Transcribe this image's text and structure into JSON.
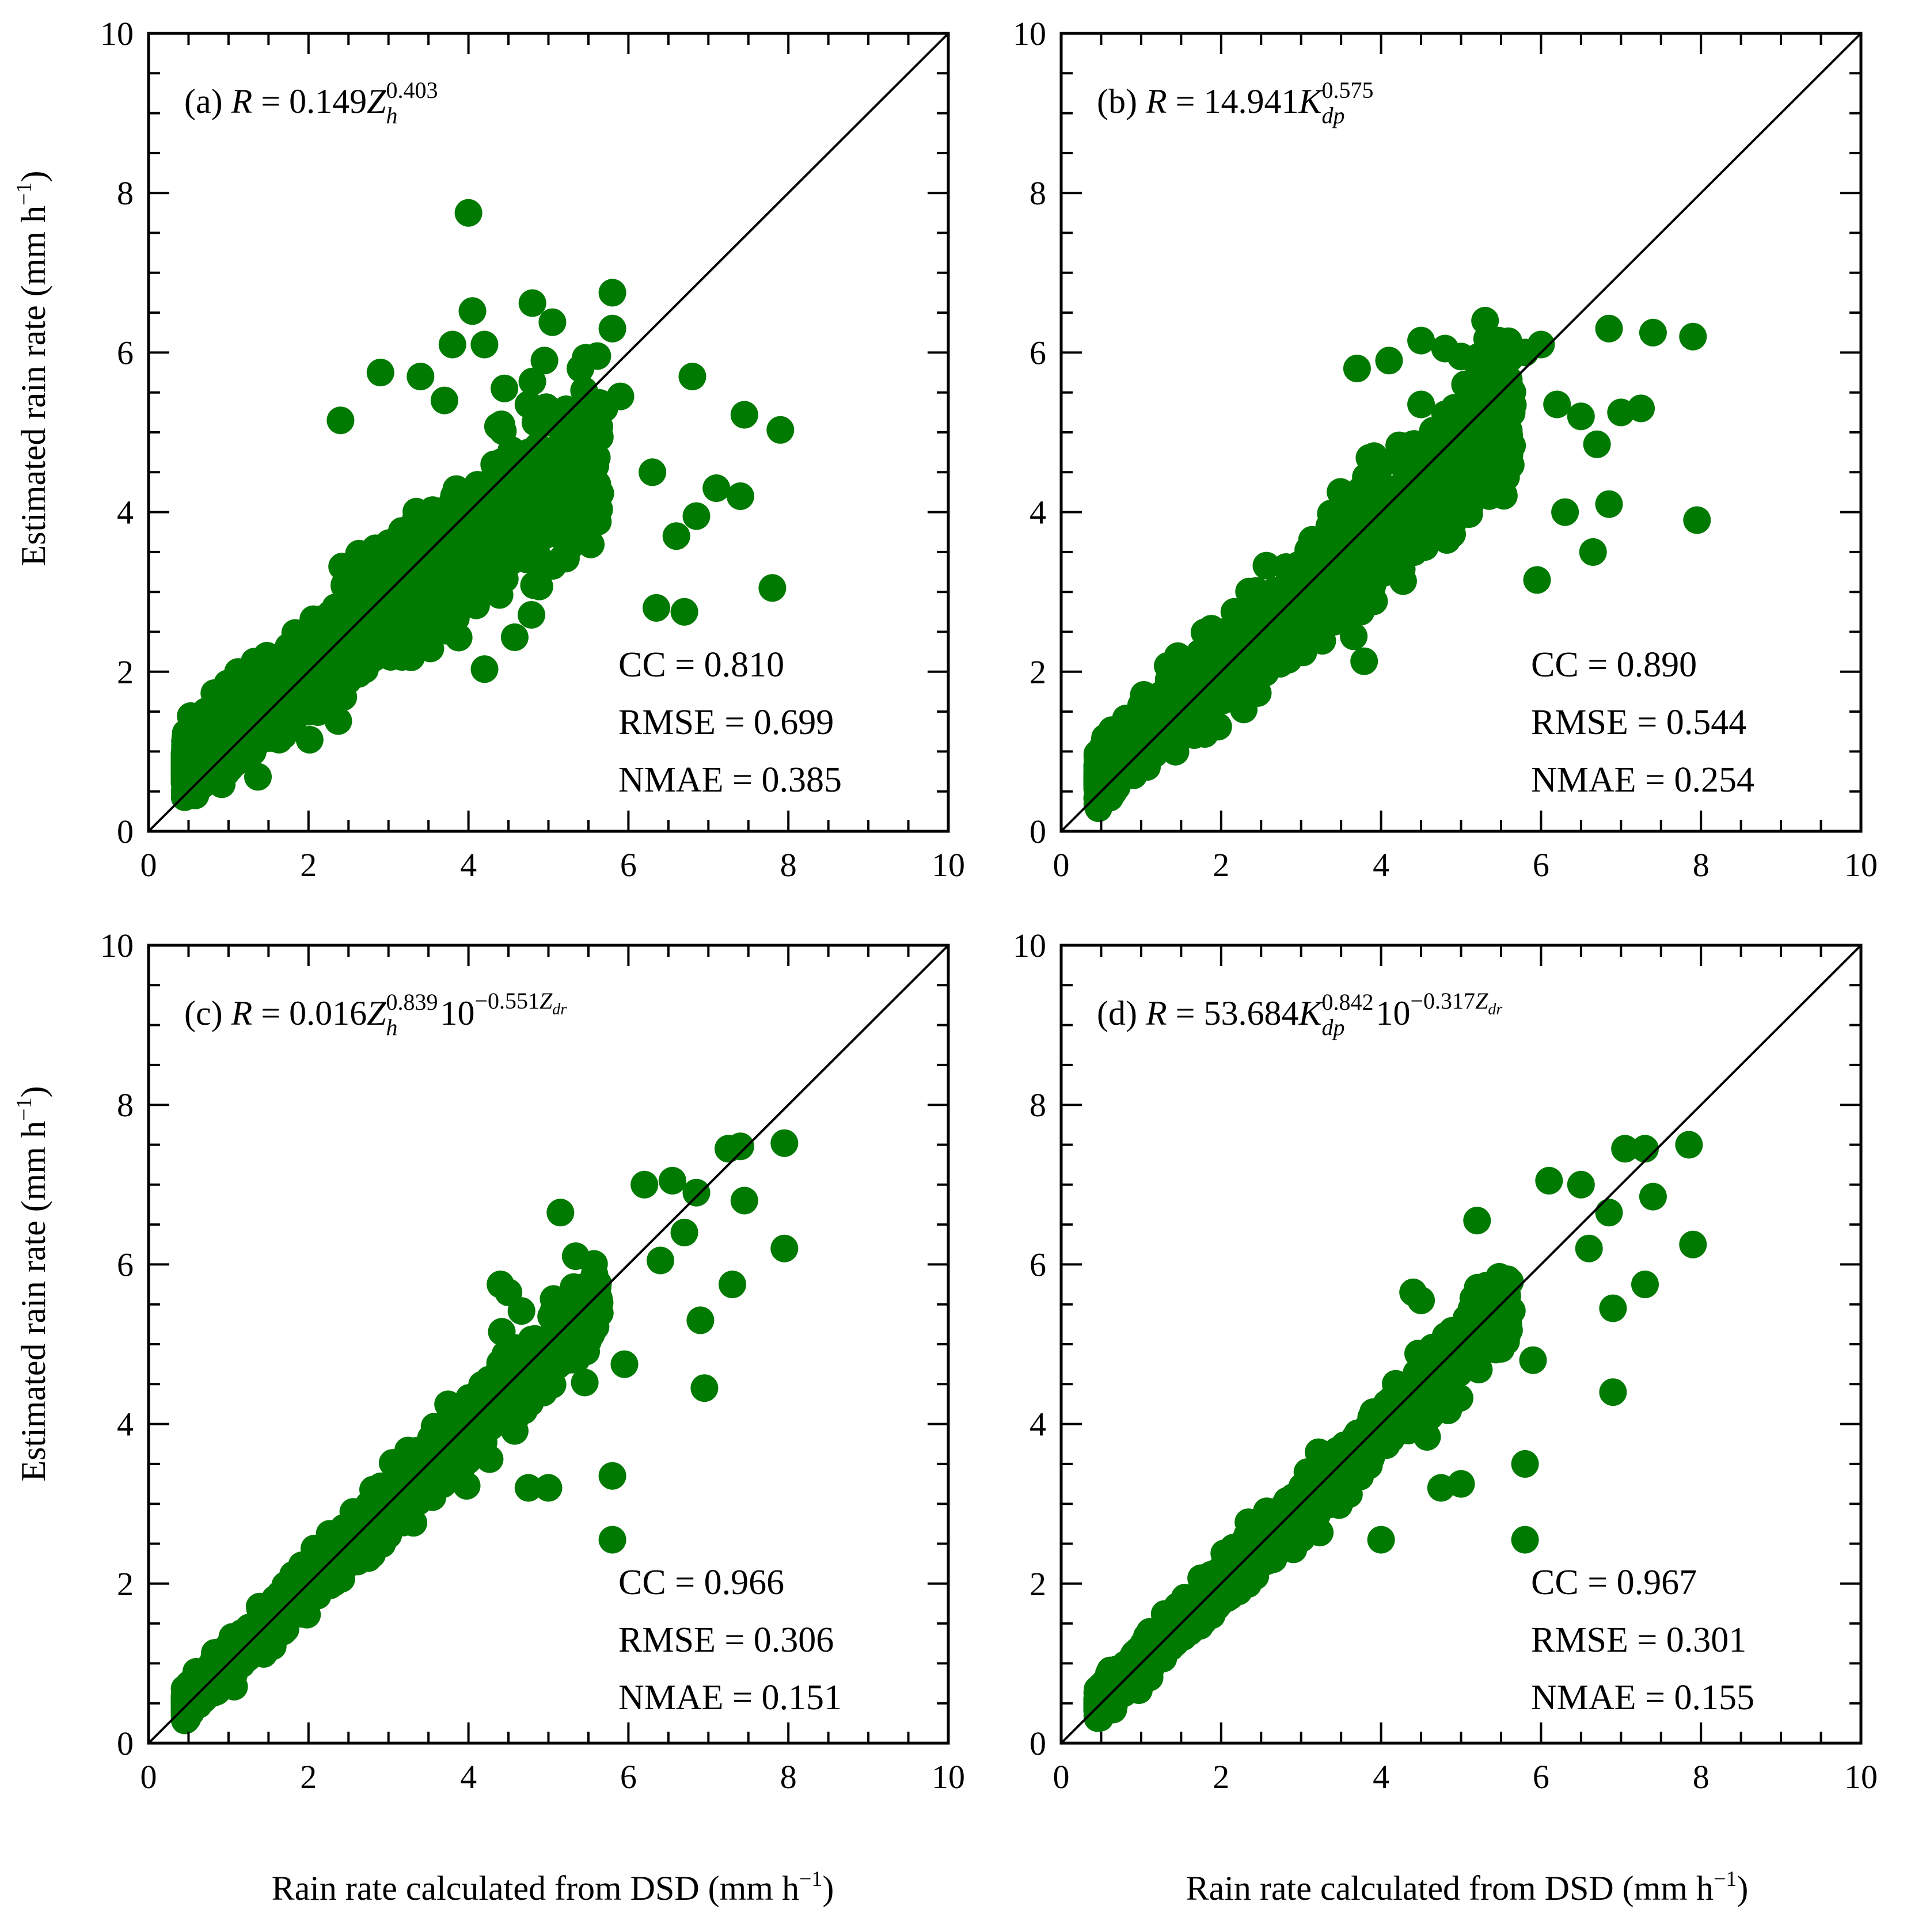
{
  "figure": {
    "x_axis_title": "Rain rate calculated  from DSD (mm h",
    "y_axis_title": "Estimated rain rate (mm h",
    "unit_exponent": "−1",
    "point_color": "#007a00",
    "line_color": "#000000"
  },
  "chart_data": [
    {
      "type": "scatter",
      "panel": "a",
      "title": "(a) R = 0.149Zh^0.403",
      "equation": {
        "prefix": "(a)",
        "lhs": "R",
        "eq": "=",
        "coef": "0.149",
        "var": "Z",
        "var_sub": "h",
        "exp": "0.403"
      },
      "xlabel": "Rain rate calculated  from DSD (mm h−1)",
      "ylabel": "Estimated rain rate (mm h−1)",
      "xlim": [
        0,
        10
      ],
      "ylim": [
        0,
        10
      ],
      "xticks": [
        "0",
        "2",
        "4",
        "6",
        "8",
        "10"
      ],
      "yticks": [
        "0",
        "2",
        "4",
        "6",
        "8",
        "10"
      ],
      "reference_line": "1:1",
      "stats": {
        "cc": "CC = 0.810",
        "rmse": "RMSE = 0.699",
        "nmae": "NMAE = 0.385"
      },
      "cloud": {
        "slope": 0.78,
        "intercept": 0.45,
        "spread": 0.38,
        "n": 1400
      },
      "outliers": [
        [
          4.0,
          7.75
        ],
        [
          4.05,
          6.52
        ],
        [
          4.8,
          6.62
        ],
        [
          5.8,
          6.75
        ],
        [
          5.8,
          6.3
        ],
        [
          5.05,
          6.38
        ],
        [
          3.8,
          6.1
        ],
        [
          4.2,
          6.1
        ],
        [
          3.4,
          5.7
        ],
        [
          2.9,
          5.75
        ],
        [
          4.45,
          5.55
        ],
        [
          4.95,
          5.9
        ],
        [
          5.4,
          5.8
        ],
        [
          6.8,
          5.7
        ],
        [
          5.1,
          5.2
        ],
        [
          4.75,
          5.35
        ],
        [
          5.9,
          5.45
        ],
        [
          2.4,
          5.15
        ],
        [
          7.45,
          5.22
        ],
        [
          7.9,
          5.03
        ],
        [
          3.7,
          5.4
        ],
        [
          5.7,
          5.3
        ],
        [
          7.8,
          3.05
        ],
        [
          6.35,
          2.8
        ],
        [
          6.7,
          2.75
        ],
        [
          6.85,
          3.95
        ],
        [
          6.3,
          4.5
        ],
        [
          7.1,
          4.3
        ],
        [
          7.4,
          4.2
        ],
        [
          6.6,
          3.7
        ]
      ]
    },
    {
      "type": "scatter",
      "panel": "b",
      "title": "(b) R = 14.941Kdp^0.575",
      "equation": {
        "prefix": "(b)",
        "lhs": "R",
        "eq": "=",
        "coef": "14.941",
        "var": "K",
        "var_sub": "dp",
        "exp": "0.575"
      },
      "xlabel": "Rain rate calculated  from DSD (mm h−1)",
      "ylabel": "",
      "xlim": [
        0,
        10
      ],
      "ylim": [
        0,
        10
      ],
      "xticks": [
        "0",
        "2",
        "4",
        "6",
        "8",
        "10"
      ],
      "yticks": [
        "0",
        "2",
        "4",
        "6",
        "8",
        "10"
      ],
      "reference_line": "1:1",
      "stats": {
        "cc": "CC = 0.890",
        "rmse": "RMSE = 0.544",
        "nmae": "NMAE = 0.254"
      },
      "cloud": {
        "slope": 0.88,
        "intercept": 0.3,
        "spread": 0.32,
        "n": 1400
      },
      "outliers": [
        [
          5.3,
          6.4
        ],
        [
          4.5,
          6.15
        ],
        [
          6.85,
          6.3
        ],
        [
          7.4,
          6.25
        ],
        [
          7.9,
          6.2
        ],
        [
          5.8,
          6.0
        ],
        [
          4.1,
          5.9
        ],
        [
          3.7,
          5.8
        ],
        [
          5.0,
          5.95
        ],
        [
          4.8,
          6.05
        ],
        [
          6.0,
          6.1
        ],
        [
          7.25,
          5.3
        ],
        [
          7.0,
          5.25
        ],
        [
          6.5,
          5.2
        ],
        [
          6.2,
          5.35
        ],
        [
          5.5,
          5.4
        ],
        [
          7.95,
          3.9
        ],
        [
          6.85,
          4.1
        ],
        [
          6.3,
          4.0
        ],
        [
          6.65,
          3.5
        ],
        [
          5.95,
          3.15
        ],
        [
          6.7,
          4.85
        ],
        [
          4.5,
          5.35
        ],
        [
          5.05,
          5.6
        ]
      ]
    },
    {
      "type": "scatter",
      "panel": "c",
      "title": "(c) R = 0.016Zh^0.839 10^−0.551Zdr",
      "equation": {
        "prefix": "(c)",
        "lhs": "R",
        "eq": "=",
        "coef": "0.016",
        "var": "Z",
        "var_sub": "h",
        "exp": "0.839",
        "tail": "10",
        "tail_exp": "−0.551",
        "tail_var": "Z",
        "tail_sub": "dr"
      },
      "xlabel": "Rain rate calculated  from DSD (mm h−1)",
      "ylabel": "Estimated rain rate (mm h−1)",
      "xlim": [
        0,
        10
      ],
      "ylim": [
        0,
        10
      ],
      "xticks": [
        "0",
        "2",
        "4",
        "6",
        "8",
        "10"
      ],
      "yticks": [
        "0",
        "2",
        "4",
        "6",
        "8",
        "10"
      ],
      "reference_line": "1:1",
      "stats": {
        "cc": "CC = 0.966",
        "rmse": "RMSE = 0.306",
        "nmae": "NMAE = 0.151"
      },
      "cloud": {
        "slope": 0.97,
        "intercept": 0.05,
        "spread": 0.18,
        "n": 1400
      },
      "outliers": [
        [
          7.25,
          7.45
        ],
        [
          7.4,
          7.48
        ],
        [
          7.95,
          7.52
        ],
        [
          7.45,
          6.8
        ],
        [
          7.95,
          6.2
        ],
        [
          7.3,
          5.75
        ],
        [
          6.55,
          7.05
        ],
        [
          6.2,
          7.0
        ],
        [
          6.9,
          5.3
        ],
        [
          6.95,
          4.45
        ],
        [
          5.95,
          4.75
        ],
        [
          5.8,
          3.35
        ],
        [
          5.8,
          2.55
        ],
        [
          5.15,
          6.65
        ],
        [
          4.4,
          5.75
        ],
        [
          4.5,
          5.65
        ],
        [
          5.0,
          3.2
        ],
        [
          4.75,
          3.2
        ],
        [
          6.4,
          6.05
        ],
        [
          6.7,
          6.4
        ],
        [
          6.85,
          6.9
        ]
      ]
    },
    {
      "type": "scatter",
      "panel": "d",
      "title": "(d) R = 53.684Kdp^0.842 10^−0.317Zdr",
      "equation": {
        "prefix": "(d)",
        "lhs": "R",
        "eq": "=",
        "coef": "53.684",
        "var": "K",
        "var_sub": "dp",
        "exp": "0.842",
        "tail": "10",
        "tail_exp": "−0.317",
        "tail_var": "Z",
        "tail_sub": "dr"
      },
      "xlabel": "Rain rate calculated  from DSD (mm h−1)",
      "ylabel": "",
      "xlim": [
        0,
        10
      ],
      "ylim": [
        0,
        10
      ],
      "xticks": [
        "0",
        "2",
        "4",
        "6",
        "8",
        "10"
      ],
      "yticks": [
        "0",
        "2",
        "4",
        "6",
        "8",
        "10"
      ],
      "reference_line": "1:1",
      "stats": {
        "cc": "CC = 0.967",
        "rmse": "RMSE = 0.301",
        "nmae": "NMAE = 0.155"
      },
      "cloud": {
        "slope": 0.97,
        "intercept": 0.05,
        "spread": 0.17,
        "n": 1400
      },
      "outliers": [
        [
          7.05,
          7.45
        ],
        [
          7.3,
          7.45
        ],
        [
          7.85,
          7.5
        ],
        [
          7.4,
          6.85
        ],
        [
          7.9,
          6.25
        ],
        [
          7.3,
          5.75
        ],
        [
          6.1,
          7.05
        ],
        [
          6.5,
          7.0
        ],
        [
          6.9,
          5.45
        ],
        [
          6.9,
          4.4
        ],
        [
          5.9,
          4.8
        ],
        [
          5.8,
          3.5
        ],
        [
          5.8,
          2.55
        ],
        [
          5.2,
          6.55
        ],
        [
          4.4,
          5.65
        ],
        [
          4.5,
          5.55
        ],
        [
          4.75,
          3.2
        ],
        [
          5.0,
          3.25
        ],
        [
          4.0,
          2.55
        ],
        [
          6.6,
          6.2
        ],
        [
          6.85,
          6.65
        ]
      ]
    }
  ]
}
